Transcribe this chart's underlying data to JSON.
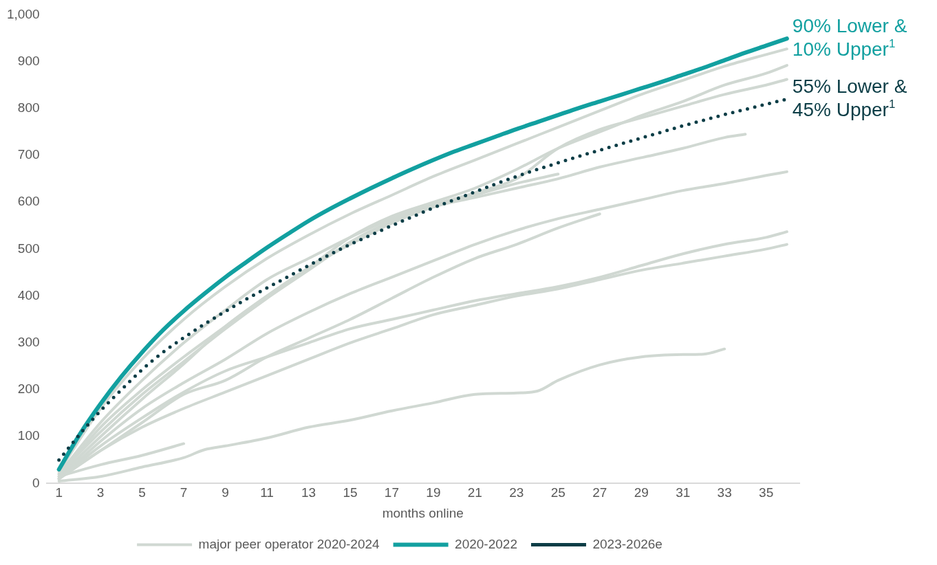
{
  "chart_data": {
    "type": "line",
    "xlabel": "months online",
    "xlim": [
      0.4,
      36.6
    ],
    "xticks": [
      1,
      3,
      5,
      7,
      9,
      11,
      13,
      15,
      17,
      19,
      21,
      23,
      25,
      27,
      29,
      31,
      33,
      35
    ],
    "ylim": [
      0,
      1000
    ],
    "yticks": [
      0,
      100,
      200,
      300,
      400,
      500,
      600,
      700,
      800,
      900,
      {
        "value": 1000,
        "label": "1,000"
      }
    ],
    "grid": false,
    "legend": "bottom",
    "marker": "none",
    "series": [
      {
        "name": "major peer operator 2020-2024",
        "color": "#d0d8d2",
        "x": [
          1,
          3,
          5,
          7,
          9,
          11,
          13,
          15,
          17,
          19,
          21,
          23,
          25,
          27,
          29,
          31,
          33,
          35,
          36
        ],
        "values": [
          25,
          160,
          265,
          350,
          420,
          480,
          530,
          575,
          615,
          655,
          690,
          725,
          760,
          795,
          830,
          860,
          890,
          915,
          927
        ]
      },
      {
        "color": "#d0d8d2",
        "x": [
          1,
          3,
          5,
          7,
          9,
          11,
          13,
          15,
          17,
          19,
          21,
          23,
          25,
          27,
          29,
          31,
          33,
          35,
          36
        ],
        "values": [
          15,
          100,
          180,
          255,
          335,
          400,
          460,
          525,
          570,
          600,
          630,
          670,
          715,
          750,
          785,
          815,
          850,
          875,
          892
        ]
      },
      {
        "color": "#d0d8d2",
        "x": [
          1,
          3,
          5,
          7,
          9,
          11,
          13,
          15,
          17,
          19,
          21,
          23,
          25,
          27,
          29,
          31,
          33,
          35,
          36
        ],
        "values": [
          20,
          130,
          220,
          300,
          370,
          435,
          480,
          525,
          565,
          595,
          620,
          650,
          715,
          755,
          780,
          805,
          830,
          850,
          862
        ]
      },
      {
        "color": "#d0d8d2",
        "x": [
          1,
          3,
          5,
          7,
          9,
          11,
          13,
          15,
          17,
          19,
          21,
          23,
          25,
          27,
          29,
          31,
          33,
          34
        ],
        "values": [
          15,
          120,
          200,
          270,
          335,
          400,
          460,
          510,
          555,
          590,
          610,
          630,
          650,
          675,
          695,
          715,
          738,
          745
        ]
      },
      {
        "color": "#d0d8d2",
        "x": [
          1,
          3,
          5,
          7,
          9,
          11,
          13,
          15,
          17,
          19,
          21,
          23,
          25
        ],
        "values": [
          20,
          110,
          190,
          260,
          330,
          395,
          455,
          515,
          560,
          590,
          615,
          640,
          660
        ]
      },
      {
        "color": "#d0d8d2",
        "x": [
          1,
          3,
          5,
          7,
          9,
          11,
          13,
          15,
          17,
          19,
          21,
          23,
          25,
          27,
          29,
          31,
          33,
          35,
          36
        ],
        "values": [
          10,
          90,
          160,
          215,
          265,
          320,
          365,
          405,
          440,
          475,
          510,
          540,
          565,
          585,
          605,
          625,
          640,
          657,
          665
        ]
      },
      {
        "color": "#d0d8d2",
        "x": [
          1,
          3,
          5,
          7,
          9,
          11,
          13,
          15,
          17,
          19,
          21,
          23,
          25,
          27
        ],
        "values": [
          10,
          70,
          130,
          190,
          220,
          270,
          310,
          350,
          395,
          440,
          480,
          510,
          545,
          575
        ]
      },
      {
        "color": "#d0d8d2",
        "x": [
          1,
          3,
          5,
          7,
          9,
          11,
          13,
          15,
          17,
          19,
          21,
          23,
          25,
          27,
          29,
          31,
          33,
          35,
          36
        ],
        "values": [
          10,
          80,
          140,
          195,
          240,
          270,
          300,
          330,
          350,
          370,
          390,
          405,
          420,
          440,
          465,
          490,
          510,
          525,
          537
        ]
      },
      {
        "color": "#d0d8d2",
        "x": [
          1,
          3,
          5,
          7,
          9,
          11,
          13,
          15,
          17,
          19,
          21,
          23,
          25,
          27,
          29,
          31,
          33,
          35,
          36
        ],
        "values": [
          10,
          70,
          120,
          160,
          195,
          230,
          265,
          300,
          330,
          360,
          380,
          400,
          415,
          435,
          455,
          470,
          485,
          500,
          510
        ]
      },
      {
        "color": "#d0d8d2",
        "x": [
          1,
          3,
          5,
          7,
          8,
          9,
          11,
          13,
          15,
          17,
          19,
          21,
          23,
          24,
          25,
          27,
          29,
          31,
          32,
          33
        ],
        "values": [
          5,
          15,
          35,
          55,
          72,
          80,
          97,
          120,
          135,
          155,
          172,
          190,
          193,
          197,
          220,
          253,
          270,
          275,
          276,
          287
        ]
      },
      {
        "color": "#d0d8d2",
        "x": [
          1,
          3,
          5,
          7
        ],
        "values": [
          15,
          40,
          60,
          85
        ]
      },
      {
        "name": "2020-2022",
        "color": "#12a0a0",
        "line_style": "solid",
        "x": [
          1,
          2,
          3,
          4,
          5,
          6,
          7,
          8,
          9,
          10,
          11,
          12,
          13,
          14,
          15,
          16,
          17,
          18,
          19,
          20,
          21,
          22,
          23,
          24,
          25,
          26,
          27,
          28,
          29,
          30,
          31,
          32,
          33,
          34,
          35,
          36
        ],
        "values": [
          30,
          105,
          170,
          228,
          280,
          327,
          368,
          405,
          440,
          472,
          503,
          532,
          560,
          585,
          608,
          630,
          651,
          671,
          690,
          708,
          724,
          740,
          756,
          771,
          786,
          801,
          815,
          829,
          843,
          857,
          872,
          887,
          903,
          919,
          934,
          949
        ]
      },
      {
        "name": "2023-2026e",
        "color": "#0b3d46",
        "line_style": "dotted",
        "x": [
          1,
          2,
          3,
          4,
          5,
          6,
          7,
          8,
          9,
          10,
          11,
          12,
          13,
          14,
          15,
          16,
          17,
          18,
          19,
          20,
          21,
          22,
          23,
          24,
          25,
          26,
          27,
          28,
          29,
          30,
          31,
          32,
          33,
          34,
          35,
          36
        ],
        "values": [
          50,
          105,
          155,
          200,
          243,
          280,
          311,
          340,
          367,
          393,
          417,
          441,
          465,
          488,
          510,
          530,
          550,
          569,
          588,
          605,
          622,
          639,
          655,
          670,
          684,
          698,
          711,
          724,
          737,
          750,
          763,
          775,
          787,
          798,
          809,
          820
        ]
      }
    ],
    "annotations": [
      {
        "text": "90% Lower & 10% Upper$^{1}$",
        "x": 36,
        "y": 949
      },
      {
        "text": "55% Lower & 45% Upper$^{1}$",
        "x": 36,
        "y": 820
      }
    ]
  }
}
